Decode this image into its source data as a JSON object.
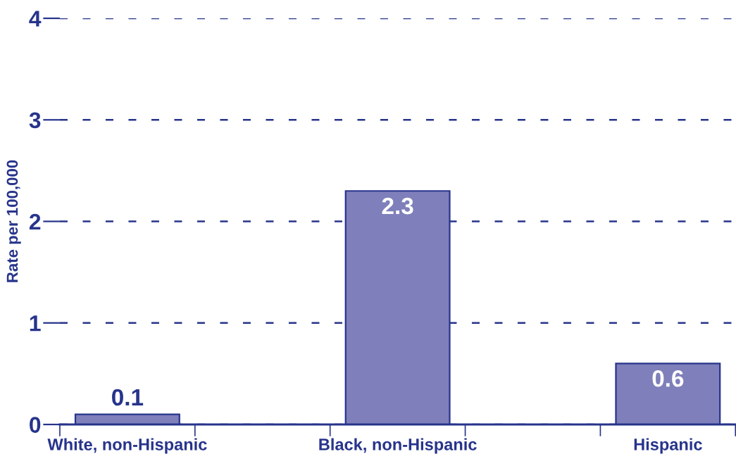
{
  "chart_data": {
    "type": "bar",
    "ylabel": "Rate per 100,000",
    "categories": [
      "White, non-Hispanic",
      "Black, non-Hispanic",
      "Hispanic"
    ],
    "values": [
      0.1,
      2.3,
      0.6
    ],
    "color": "#7f7fbb",
    "ylim": [
      0,
      4
    ],
    "yticks": [
      0,
      1,
      2,
      3,
      4
    ],
    "grid": "y",
    "data_labels": true
  }
}
